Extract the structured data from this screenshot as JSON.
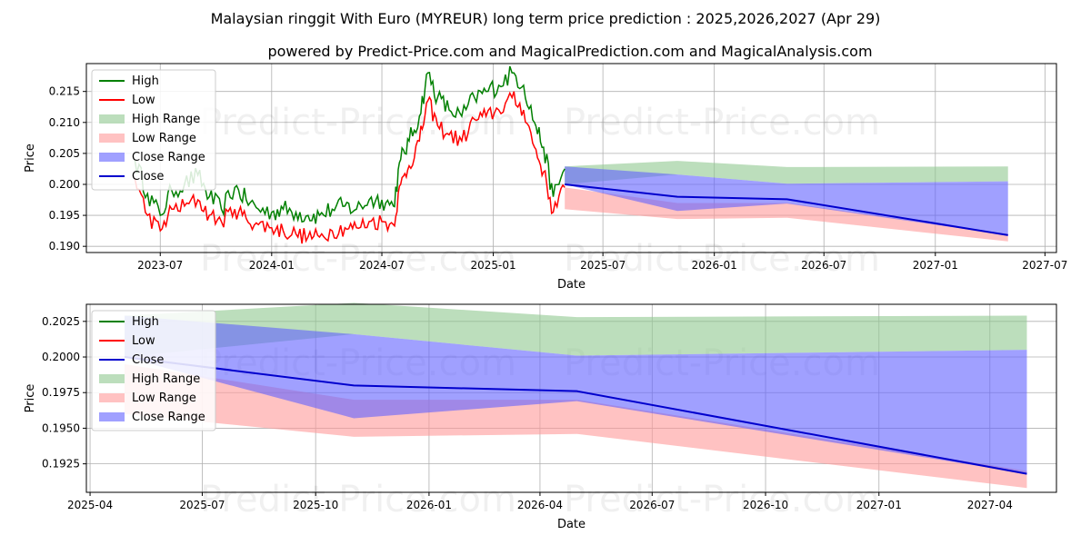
{
  "title": "Malaysian ringgit With Euro (MYREUR) long term price prediction : 2025,2026,2027 (Apr 29)",
  "subtitle": "powered by Predict-Price.com and MagicalPrediction.com and MagicalAnalysis.com",
  "watermark": "Predict-Price.com",
  "colors": {
    "high": "#008000",
    "low": "#ff0000",
    "close": "#0000cd",
    "high_range": "#90c890",
    "low_range": "#ff9a9a",
    "close_range": "#6060ff"
  },
  "chart_data": [
    {
      "type": "line",
      "xlabel": "Date",
      "ylabel": "Price",
      "legend_position": "top-left",
      "grid": true,
      "xlim": [
        "2023-03-01",
        "2027-07-20"
      ],
      "ylim": [
        0.189,
        0.2195
      ],
      "x_ticks": [
        "2023-07",
        "2024-01",
        "2024-07",
        "2025-01",
        "2025-07",
        "2026-01",
        "2026-07",
        "2027-01",
        "2027-07"
      ],
      "y_ticks": [
        "0.190",
        "0.195",
        "0.200",
        "0.205",
        "0.210",
        "0.215"
      ],
      "legend": [
        "High",
        "Low",
        "High Range",
        "Low Range",
        "Close Range",
        "Close"
      ],
      "history": {
        "x": [
          "2023-05-20",
          "2023-06-10",
          "2023-07-01",
          "2023-07-20",
          "2023-08-10",
          "2023-09-01",
          "2023-09-20",
          "2023-10-10",
          "2023-11-01",
          "2023-11-20",
          "2023-12-10",
          "2024-01-01",
          "2024-01-20",
          "2024-02-10",
          "2024-03-01",
          "2024-03-20",
          "2024-04-10",
          "2024-05-01",
          "2024-05-20",
          "2024-06-10",
          "2024-07-01",
          "2024-07-20",
          "2024-08-01",
          "2024-08-15",
          "2024-09-01",
          "2024-09-15",
          "2024-10-01",
          "2024-10-20",
          "2024-11-10",
          "2024-12-01",
          "2024-12-20",
          "2025-01-10",
          "2025-02-01",
          "2025-02-20",
          "2025-03-10",
          "2025-03-25",
          "2025-04-10",
          "2025-04-29"
        ],
        "high": [
          0.204,
          0.1985,
          0.195,
          0.199,
          0.2,
          0.2015,
          0.198,
          0.196,
          0.1995,
          0.1975,
          0.196,
          0.1955,
          0.196,
          0.1955,
          0.195,
          0.195,
          0.196,
          0.1965,
          0.196,
          0.1975,
          0.1975,
          0.1965,
          0.204,
          0.207,
          0.211,
          0.218,
          0.214,
          0.212,
          0.211,
          0.214,
          0.215,
          0.216,
          0.218,
          0.216,
          0.21,
          0.206,
          0.198,
          0.2025
        ],
        "low": [
          0.201,
          0.195,
          0.1925,
          0.196,
          0.1965,
          0.1975,
          0.195,
          0.194,
          0.196,
          0.1945,
          0.1935,
          0.193,
          0.1925,
          0.192,
          0.1915,
          0.1915,
          0.1925,
          0.193,
          0.193,
          0.194,
          0.194,
          0.1935,
          0.2,
          0.203,
          0.207,
          0.2135,
          0.2095,
          0.208,
          0.207,
          0.2105,
          0.211,
          0.212,
          0.214,
          0.212,
          0.206,
          0.202,
          0.1955,
          0.1995
        ]
      }
    },
    {
      "type": "area",
      "xlabel": "Date",
      "ylabel": "Price",
      "legend_position": "top-left",
      "grid": true,
      "xlim": [
        "2025-03-29",
        "2027-05-25"
      ],
      "ylim": [
        0.1905,
        0.2037
      ],
      "x_ticks": [
        "2025-04",
        "2025-07",
        "2025-10",
        "2026-01",
        "2026-04",
        "2026-07",
        "2026-10",
        "2027-01",
        "2027-04"
      ],
      "y_ticks": [
        "0.1925",
        "0.1950",
        "0.1975",
        "0.2000",
        "0.2025"
      ],
      "legend": [
        "High",
        "Low",
        "Close",
        "High Range",
        "Low Range",
        "Close Range"
      ]
    }
  ],
  "prediction": {
    "x": [
      "2025-04-29",
      "2025-11-01",
      "2026-05-01",
      "2027-05-01"
    ],
    "close": [
      0.2,
      0.198,
      0.1976,
      0.1918
    ],
    "high_range": [
      [
        0.2029,
        0.2
      ],
      [
        0.2038,
        0.2016
      ],
      [
        0.2028,
        0.2001
      ],
      [
        0.2029,
        0.2005
      ]
    ],
    "low_range": [
      [
        0.1995,
        0.196
      ],
      [
        0.197,
        0.1944
      ],
      [
        0.197,
        0.1946
      ],
      [
        0.192,
        0.1908
      ]
    ],
    "close_range": [
      [
        0.2029,
        0.2
      ],
      [
        0.2016,
        0.1957
      ],
      [
        0.2001,
        0.1969
      ],
      [
        0.2005,
        0.1918
      ]
    ]
  }
}
